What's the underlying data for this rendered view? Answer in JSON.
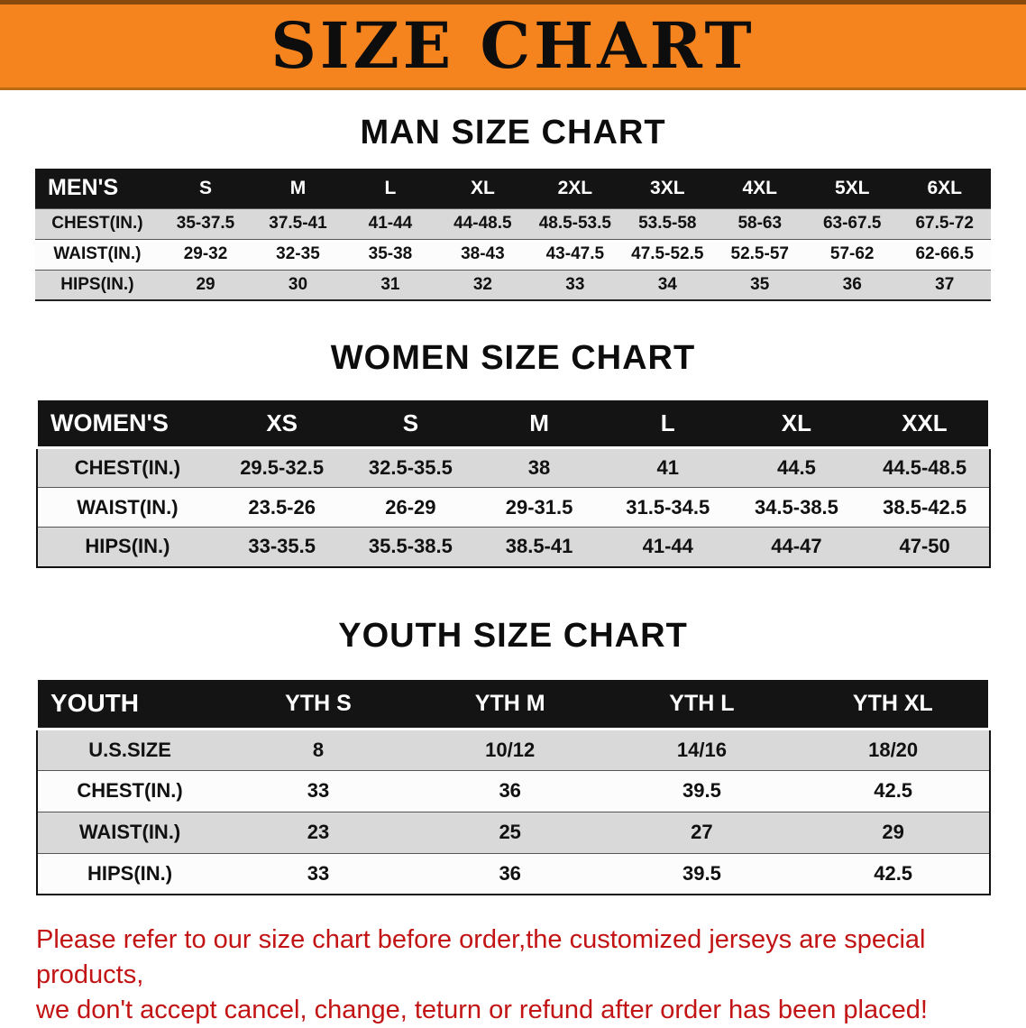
{
  "banner": {
    "title": "SIZE CHART",
    "bg_color": "#f5831e",
    "text_color": "#0d0d0d"
  },
  "colors": {
    "table_header_bg": "#141414",
    "table_header_text": "#ffffff",
    "row_shade": "#d9d9d9",
    "footer_red": "#c21414"
  },
  "sections": [
    {
      "id": "men",
      "heading": "MAN SIZE CHART",
      "table": {
        "label": "MEN'S",
        "columns": [
          "S",
          "M",
          "L",
          "XL",
          "2XL",
          "3XL",
          "4XL",
          "5XL",
          "6XL"
        ],
        "rows": [
          {
            "label": "CHEST(IN.)",
            "values": [
              "35-37.5",
              "37.5-41",
              "41-44",
              "44-48.5",
              "48.5-53.5",
              "53.5-58",
              "58-63",
              "63-67.5",
              "67.5-72"
            ]
          },
          {
            "label": "WAIST(IN.)",
            "values": [
              "29-32",
              "32-35",
              "35-38",
              "38-43",
              "43-47.5",
              "47.5-52.5",
              "52.5-57",
              "57-62",
              "62-66.5"
            ]
          },
          {
            "label": "HIPS(IN.)",
            "values": [
              "29",
              "30",
              "31",
              "32",
              "33",
              "34",
              "35",
              "36",
              "37"
            ]
          }
        ]
      }
    },
    {
      "id": "women",
      "heading": "WOMEN SIZE CHART",
      "table": {
        "label": "WOMEN'S",
        "columns": [
          "XS",
          "S",
          "M",
          "L",
          "XL",
          "XXL"
        ],
        "rows": [
          {
            "label": "CHEST(IN.)",
            "values": [
              "29.5-32.5",
              "32.5-35.5",
              "38",
              "41",
              "44.5",
              "44.5-48.5"
            ]
          },
          {
            "label": "WAIST(IN.)",
            "values": [
              "23.5-26",
              "26-29",
              "29-31.5",
              "31.5-34.5",
              "34.5-38.5",
              "38.5-42.5"
            ]
          },
          {
            "label": "HIPS(IN.)",
            "values": [
              "33-35.5",
              "35.5-38.5",
              "38.5-41",
              "41-44",
              "44-47",
              "47-50"
            ]
          }
        ]
      }
    },
    {
      "id": "youth",
      "heading": "YOUTH SIZE CHART",
      "table": {
        "label": "YOUTH",
        "columns": [
          "YTH S",
          "YTH M",
          "YTH L",
          "YTH XL"
        ],
        "rows": [
          {
            "label": "U.S.SIZE",
            "values": [
              "8",
              "10/12",
              "14/16",
              "18/20"
            ]
          },
          {
            "label": "CHEST(IN.)",
            "values": [
              "33",
              "36",
              "39.5",
              "42.5"
            ]
          },
          {
            "label": "WAIST(IN.)",
            "values": [
              "23",
              "25",
              "27",
              "29"
            ]
          },
          {
            "label": "HIPS(IN.)",
            "values": [
              "33",
              "36",
              "39.5",
              "42.5"
            ]
          }
        ]
      }
    }
  ],
  "footer": {
    "line1": "Please refer to our size chart before order,the customized jerseys are special products,",
    "line2": "we don't accept cancel, change, teturn or refund after order has been placed!"
  }
}
